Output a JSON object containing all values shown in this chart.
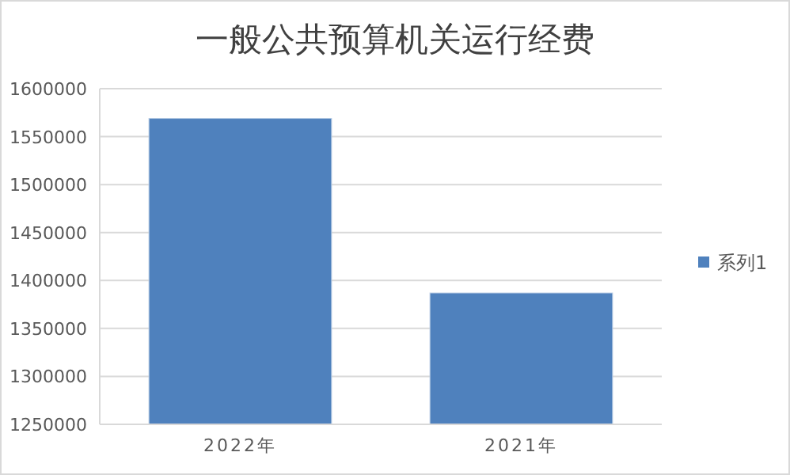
{
  "chart_data": {
    "type": "bar",
    "title": "一般公共预算机关运行经费",
    "categories": [
      "2022年",
      "2021年"
    ],
    "series": [
      {
        "name": "系列1",
        "color": "#4f81bd",
        "values": [
          1569000,
          1387000
        ]
      }
    ],
    "ylim": [
      1250000,
      1600000
    ],
    "yticks": [
      1250000,
      1300000,
      1350000,
      1400000,
      1450000,
      1500000,
      1550000,
      1600000
    ],
    "grid": "y",
    "legend": "right"
  }
}
